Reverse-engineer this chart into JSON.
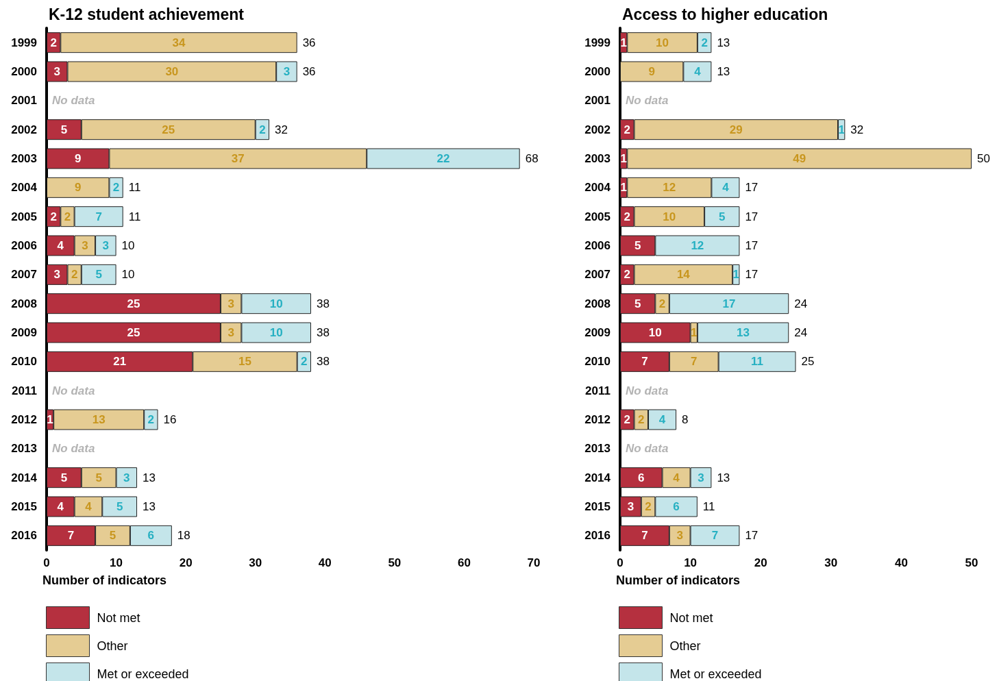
{
  "chart_data": [
    {
      "type": "bar",
      "orientation": "horizontal",
      "stacked": true,
      "title": "K-12 student achievement",
      "xlabel": "Number of indicators",
      "categories": [
        "1999",
        "2000",
        "2001",
        "2002",
        "2003",
        "2004",
        "2005",
        "2006",
        "2007",
        "2008",
        "2009",
        "2010",
        "2011",
        "2012",
        "2013",
        "2014",
        "2015",
        "2016"
      ],
      "series": [
        {
          "name": "Not met",
          "color": "#b5303f",
          "values": [
            2,
            3,
            null,
            5,
            9,
            null,
            2,
            4,
            3,
            25,
            25,
            21,
            null,
            1,
            null,
            5,
            4,
            7
          ]
        },
        {
          "name": "Other",
          "color": "#e5cc93",
          "values": [
            34,
            30,
            null,
            25,
            37,
            9,
            2,
            3,
            2,
            3,
            3,
            15,
            null,
            13,
            null,
            5,
            4,
            5
          ]
        },
        {
          "name": "Met or exceeded",
          "color": "#c4e5ea",
          "values": [
            null,
            3,
            null,
            2,
            22,
            2,
            7,
            3,
            5,
            10,
            10,
            2,
            null,
            2,
            null,
            3,
            5,
            6
          ]
        }
      ],
      "totals": [
        "36",
        "36",
        null,
        "32",
        "68",
        "11",
        "11",
        "10",
        "10",
        "38",
        "38",
        "38",
        null,
        "16",
        null,
        "13",
        "13",
        "18"
      ],
      "data_labels": true,
      "xlim": [
        0,
        70
      ],
      "xticks": [
        0,
        10,
        20,
        30,
        40,
        50,
        60,
        70
      ],
      "grid": false,
      "legend": "bottom left",
      "annotations": [
        "No data",
        "No data",
        "No data"
      ]
    },
    {
      "type": "bar",
      "orientation": "horizontal",
      "stacked": true,
      "title": "Access to higher education",
      "xlabel": "Number of indicators",
      "categories": [
        "1999",
        "2000",
        "2001",
        "2002",
        "2003",
        "2004",
        "2005",
        "2006",
        "2007",
        "2008",
        "2009",
        "2010",
        "2011",
        "2012",
        "2013",
        "2014",
        "2015",
        "2016"
      ],
      "series": [
        {
          "name": "Not met",
          "color": "#b5303f",
          "values": [
            1,
            null,
            null,
            2,
            1,
            1,
            2,
            5,
            2,
            5,
            10,
            7,
            null,
            2,
            null,
            6,
            3,
            7
          ]
        },
        {
          "name": "Other",
          "color": "#e5cc93",
          "values": [
            10,
            9,
            null,
            29,
            49,
            12,
            10,
            null,
            14,
            2,
            1,
            7,
            null,
            2,
            null,
            4,
            2,
            3
          ]
        },
        {
          "name": "Met or exceeded",
          "color": "#c4e5ea",
          "values": [
            2,
            4,
            null,
            1,
            null,
            4,
            5,
            12,
            1,
            17,
            13,
            11,
            null,
            4,
            null,
            3,
            6,
            7
          ]
        }
      ],
      "totals": [
        "13",
        "13",
        null,
        "32",
        "50",
        "17",
        "17",
        "17",
        "17",
        "24",
        "24",
        "25",
        null,
        "8",
        null,
        "13",
        "11",
        "17"
      ],
      "data_labels": true,
      "xlim": [
        0,
        50
      ],
      "xticks": [
        0,
        10,
        20,
        30,
        40,
        50
      ],
      "grid": false,
      "legend": "bottom left",
      "annotations": [
        "No data",
        "No data",
        "No data"
      ]
    }
  ]
}
